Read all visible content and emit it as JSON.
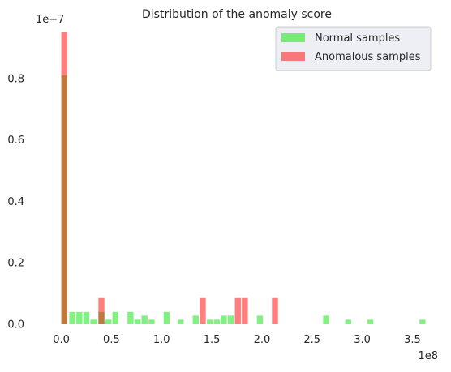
{
  "chart_data": {
    "type": "histogram",
    "title": "Distribution of the anomaly score",
    "xlabel": "",
    "ylabel": "",
    "x_scale_note": "1e8",
    "y_scale_note": "1e−7",
    "xlim": [
      -0.15,
      3.65
    ],
    "ylim": [
      0,
      0.95
    ],
    "x_ticks": [
      0.0,
      0.5,
      1.0,
      1.5,
      2.0,
      2.5,
      3.0,
      3.5
    ],
    "x_tick_labels": [
      "0.0",
      "0.5",
      "1.0",
      "1.5",
      "2.0",
      "2.5",
      "3.0",
      "3.5"
    ],
    "y_ticks": [
      0.0,
      0.2,
      0.4,
      0.6,
      0.8
    ],
    "y_tick_labels": [
      "0.0",
      "0.2",
      "0.4",
      "0.6",
      "0.8"
    ],
    "grid": false,
    "legend_position": "top-right",
    "series": [
      {
        "name": "Normal samples",
        "color": "#00e600",
        "opacity": 0.5,
        "bins": [
          {
            "x0": 0.0,
            "x1": 0.06,
            "y": 0.81
          },
          {
            "x0": 0.08,
            "x1": 0.14,
            "y": 0.04
          },
          {
            "x0": 0.15,
            "x1": 0.21,
            "y": 0.04
          },
          {
            "x0": 0.22,
            "x1": 0.28,
            "y": 0.04
          },
          {
            "x0": 0.29,
            "x1": 0.36,
            "y": 0.015
          },
          {
            "x0": 0.37,
            "x1": 0.43,
            "y": 0.04
          },
          {
            "x0": 0.44,
            "x1": 0.5,
            "y": 0.015
          },
          {
            "x0": 0.51,
            "x1": 0.57,
            "y": 0.04
          },
          {
            "x0": 0.66,
            "x1": 0.72,
            "y": 0.04
          },
          {
            "x0": 0.73,
            "x1": 0.79,
            "y": 0.015
          },
          {
            "x0": 0.8,
            "x1": 0.86,
            "y": 0.028
          },
          {
            "x0": 0.87,
            "x1": 0.93,
            "y": 0.015
          },
          {
            "x0": 1.02,
            "x1": 1.08,
            "y": 0.04
          },
          {
            "x0": 1.16,
            "x1": 1.22,
            "y": 0.015
          },
          {
            "x0": 1.31,
            "x1": 1.37,
            "y": 0.028
          },
          {
            "x0": 1.45,
            "x1": 1.51,
            "y": 0.015
          },
          {
            "x0": 1.52,
            "x1": 1.58,
            "y": 0.015
          },
          {
            "x0": 1.59,
            "x1": 1.65,
            "y": 0.028
          },
          {
            "x0": 1.66,
            "x1": 1.72,
            "y": 0.028
          },
          {
            "x0": 1.95,
            "x1": 2.01,
            "y": 0.028
          },
          {
            "x0": 2.61,
            "x1": 2.67,
            "y": 0.028
          },
          {
            "x0": 2.83,
            "x1": 2.89,
            "y": 0.015
          },
          {
            "x0": 3.05,
            "x1": 3.11,
            "y": 0.015
          },
          {
            "x0": 3.57,
            "x1": 3.63,
            "y": 0.015
          }
        ]
      },
      {
        "name": "Anomalous samples",
        "color": "#ff0000",
        "opacity": 0.5,
        "bins": [
          {
            "x0": 0.0,
            "x1": 0.06,
            "y": 0.95
          },
          {
            "x0": 0.37,
            "x1": 0.43,
            "y": 0.085
          },
          {
            "x0": 1.38,
            "x1": 1.44,
            "y": 0.085
          },
          {
            "x0": 1.73,
            "x1": 1.79,
            "y": 0.085
          },
          {
            "x0": 1.8,
            "x1": 1.86,
            "y": 0.085
          },
          {
            "x0": 2.1,
            "x1": 2.16,
            "y": 0.085
          }
        ]
      }
    ]
  }
}
